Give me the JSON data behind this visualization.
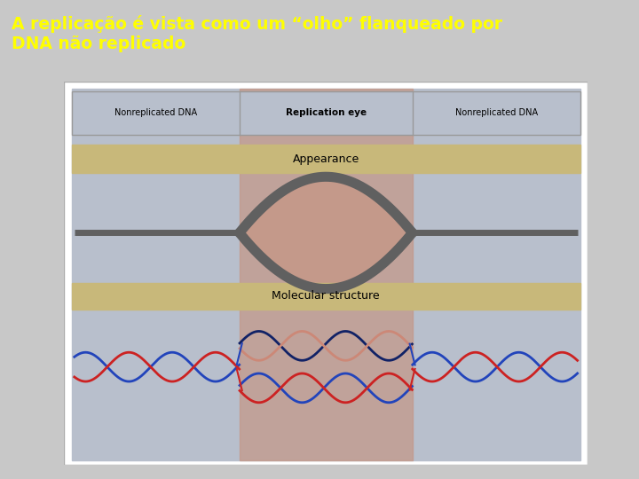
{
  "title_text": "A replicação é vista como um “olho” flanqueado por\nDNA não replicado",
  "title_bg": "#3333cc",
  "title_fg": "#ffff00",
  "main_bg": "#b8bfcc",
  "replication_eye_bg": "#c4998a",
  "appearance_bar_color": "#c8b87a",
  "molecular_bar_color": "#c8b87a",
  "nonreplicated_label": "Nonreplicated DNA",
  "replication_eye_label": "Replication eye",
  "appearance_label": "Appearance",
  "molecular_label": "Molecular structure",
  "eye_color": "#606060",
  "dna_blue": "#2244bb",
  "dna_red": "#cc2222",
  "dna_pink": "#cc8877",
  "dna_darkblue": "#112266",
  "header_bg": "#b8bfcc",
  "header_border": "#999999",
  "white_box_bg": "#ffffff"
}
